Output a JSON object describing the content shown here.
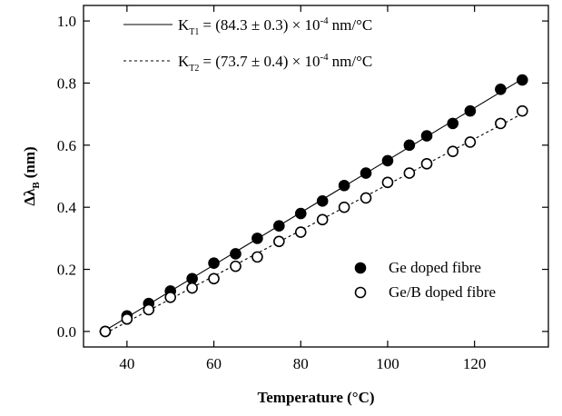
{
  "chart_data": {
    "type": "scatter",
    "x_label": "Temperature (°C)",
    "y_label": {
      "symbol": "Δλ",
      "subscript": "B",
      "unit": "(nm)"
    },
    "fit_labels": [
      {
        "symbol": "K",
        "subscript": "T1",
        "text": "= (84.3 ± 0.3) × 10",
        "superscript": "-4",
        "unit": "nm/°C",
        "line_style": "solid"
      },
      {
        "symbol": "K",
        "subscript": "T2",
        "text": "= (73.7 ± 0.4) × 10",
        "superscript": "-4",
        "unit": "nm/°C",
        "line_style": "dashed"
      }
    ],
    "x": [
      35,
      40,
      45,
      50,
      55,
      60,
      65,
      70,
      75,
      80,
      85,
      90,
      95,
      100,
      105,
      109,
      115,
      119,
      126,
      131
    ],
    "series": [
      {
        "name": "Ge doped fibre",
        "color": "#000000",
        "marker": "filled",
        "values": [
          0.0,
          0.05,
          0.09,
          0.13,
          0.17,
          0.22,
          0.25,
          0.3,
          0.34,
          0.38,
          0.42,
          0.47,
          0.51,
          0.55,
          0.6,
          0.63,
          0.67,
          0.71,
          0.78,
          0.81
        ]
      },
      {
        "name": "Ge/B doped fibre",
        "color": "#000000",
        "marker": "open",
        "values": [
          0.0,
          0.04,
          0.07,
          0.11,
          0.14,
          0.17,
          0.21,
          0.24,
          0.29,
          0.32,
          0.36,
          0.4,
          0.43,
          0.48,
          0.51,
          0.54,
          0.58,
          0.61,
          0.67,
          0.71
        ]
      }
    ],
    "xlim": [
      30,
      137
    ],
    "xticks": [
      40,
      60,
      80,
      100,
      120
    ],
    "ylim": [
      -0.05,
      1.05
    ],
    "yticks": [
      {
        "value": 0,
        "label": "0.0"
      },
      0.2,
      0.4,
      0.6,
      0.8,
      {
        "value": 1,
        "label": "1.0"
      }
    ],
    "legend": "lower right",
    "grid": false
  }
}
